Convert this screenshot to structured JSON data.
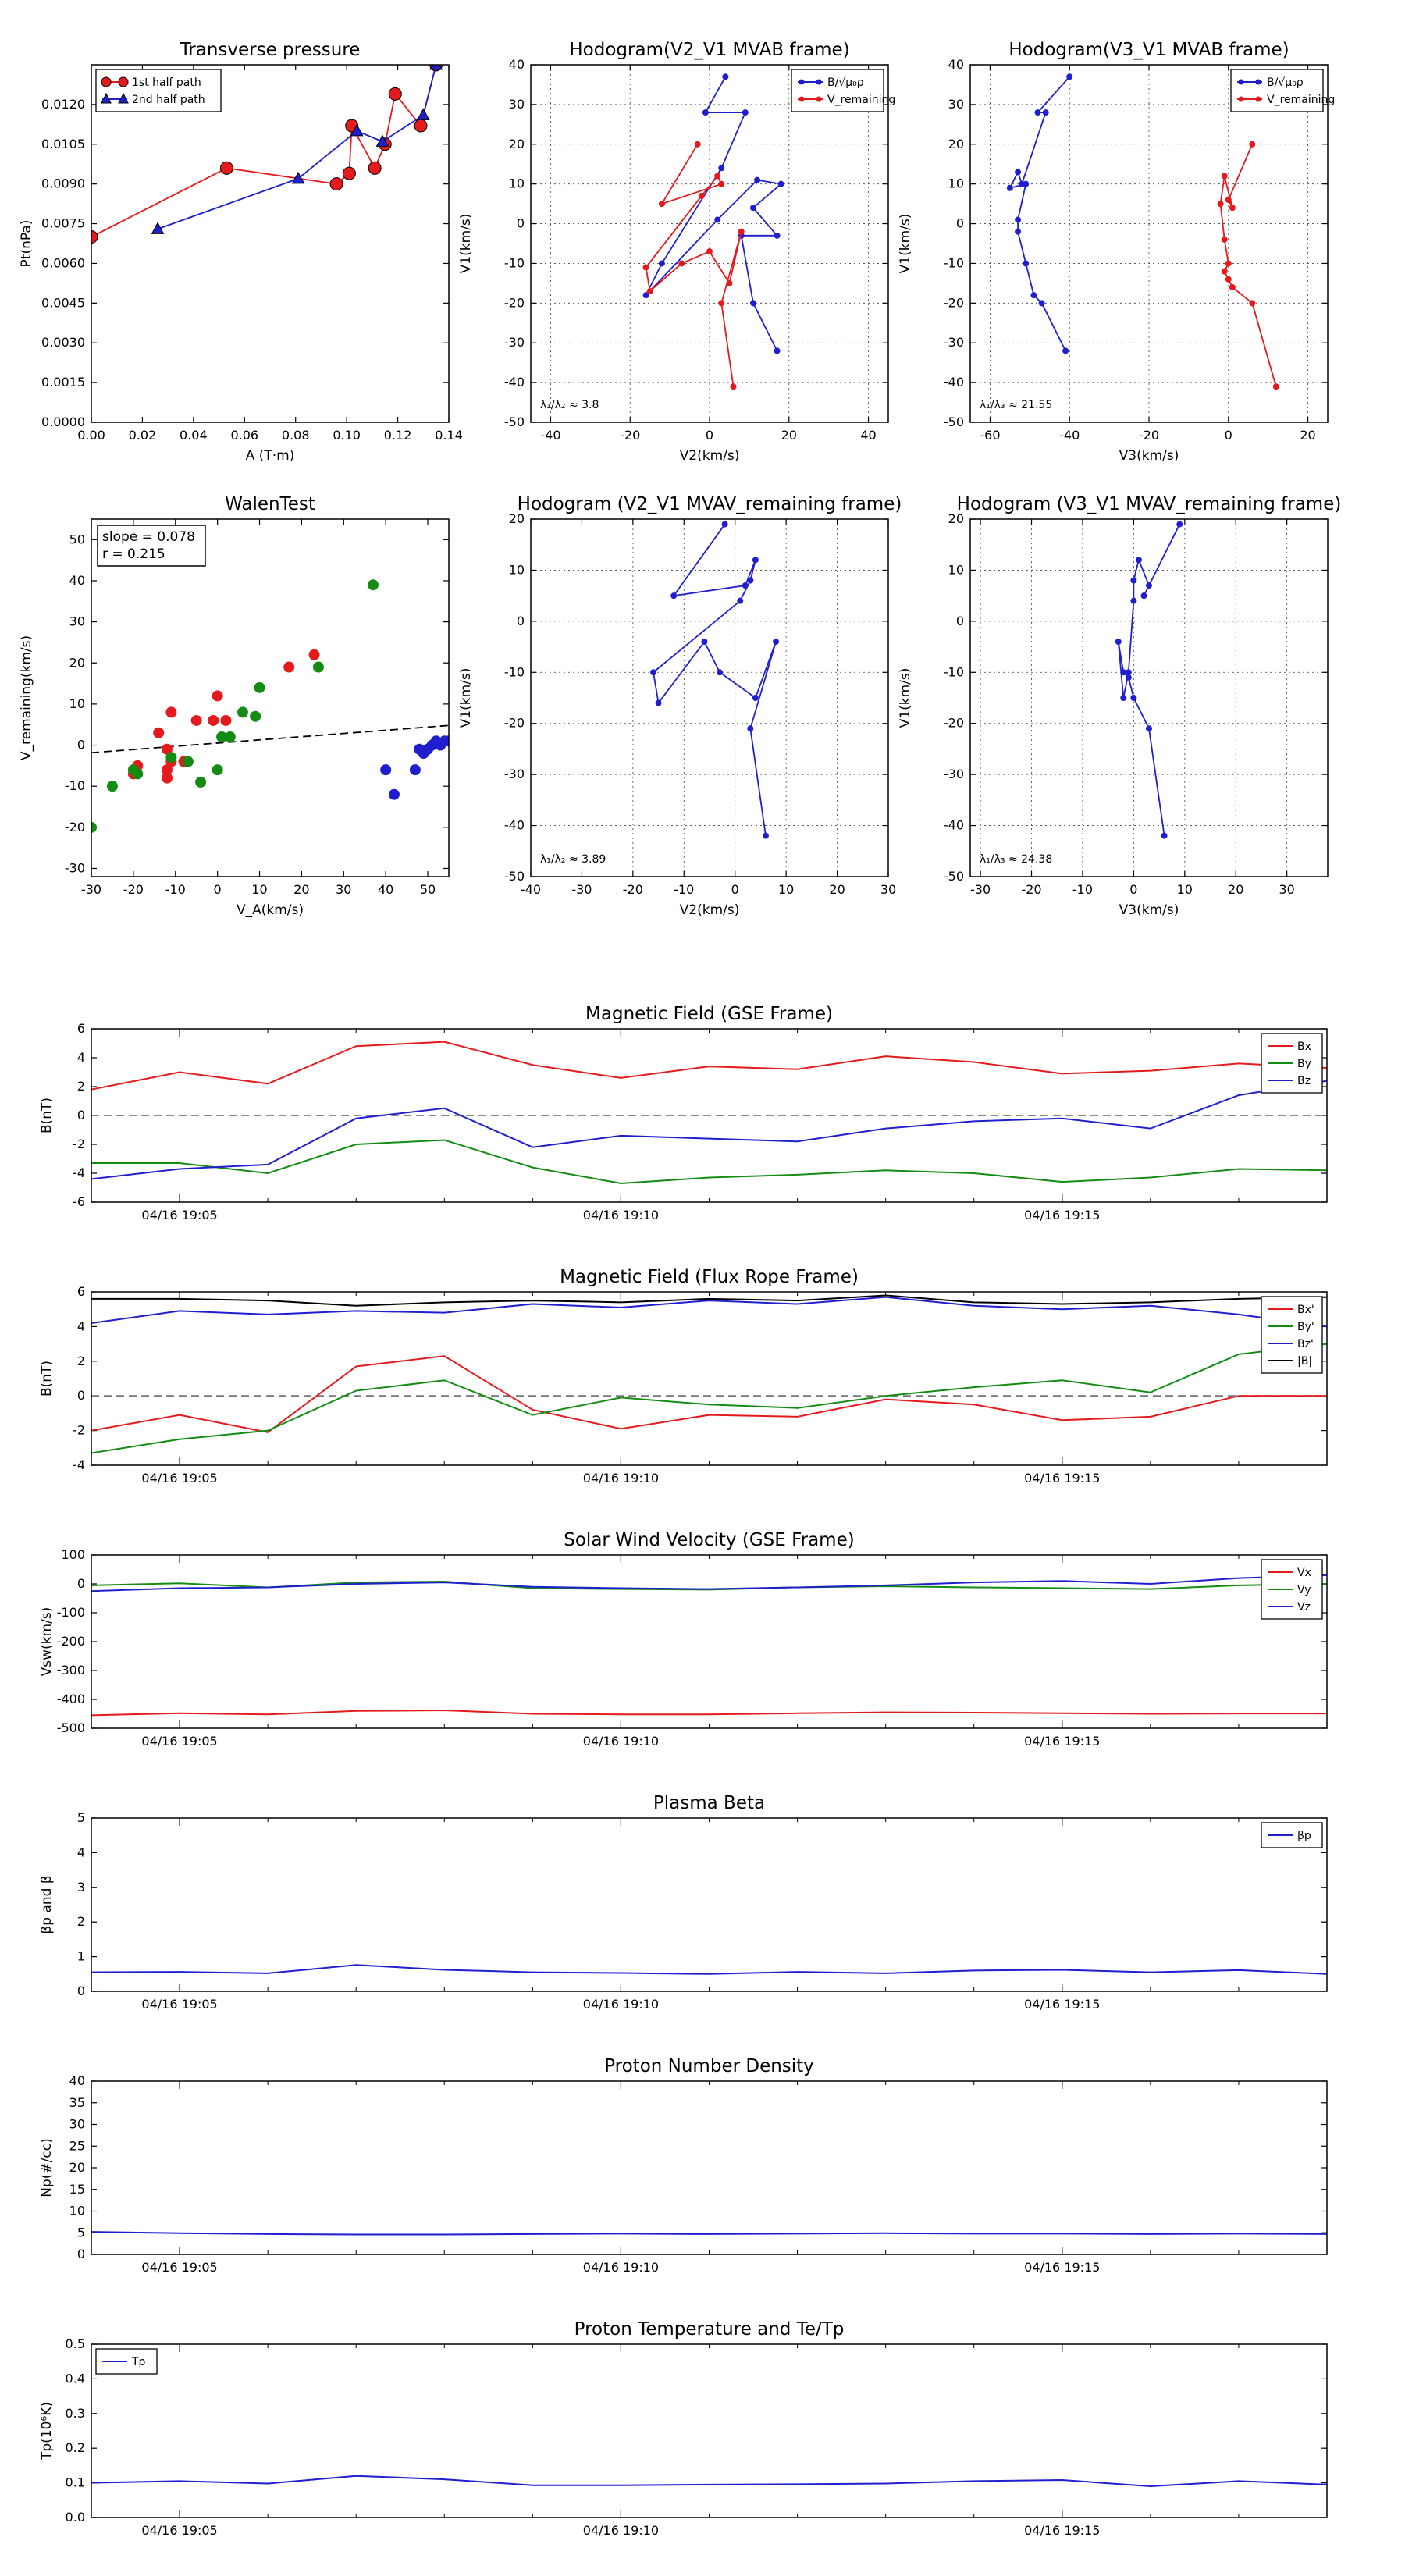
{
  "chart_data": [
    {
      "id": "pt",
      "type": "line",
      "title": "Transverse pressure",
      "xlabel": "A (T·m)",
      "ylabel": "Pt(nPa)",
      "xlim": [
        0,
        0.14
      ],
      "ylim": [
        0,
        0.0135
      ],
      "xticks": [
        0,
        0.02,
        0.04,
        0.06,
        0.08,
        0.1,
        0.12,
        0.14
      ],
      "xtick_labels": [
        "0.00",
        "0.02",
        "0.04",
        "0.06",
        "0.08",
        "0.10",
        "0.12",
        "0.14"
      ],
      "yticks": [
        0,
        0.0015,
        0.003,
        0.0045,
        0.006,
        0.0075,
        0.009,
        0.0105,
        0.012
      ],
      "ytick_labels": [
        "0.0000",
        "0.0015",
        "0.0030",
        "0.0045",
        "0.0060",
        "0.0075",
        "0.0090",
        "0.0105",
        "0.0120"
      ],
      "grid": false,
      "legend": "top-left",
      "series": [
        {
          "name": "1st half path",
          "color": "#e41a1c",
          "marker": "circle",
          "x": [
            0.0,
            0.053,
            0.096,
            0.101,
            0.102,
            0.111,
            0.115,
            0.119,
            0.129,
            0.135
          ],
          "y": [
            0.007,
            0.0096,
            0.009,
            0.0094,
            0.0112,
            0.0096,
            0.0105,
            0.0124,
            0.0112,
            0.0135
          ]
        },
        {
          "name": "2nd half path",
          "color": "#1f1fcf",
          "marker": "triangle",
          "x": [
            0.026,
            0.081,
            0.104,
            0.114,
            0.13,
            0.135
          ],
          "y": [
            0.0073,
            0.0092,
            0.011,
            0.0106,
            0.0116,
            0.0135
          ]
        }
      ]
    },
    {
      "id": "h1",
      "type": "line",
      "title": "Hodogram(V2_V1 MVAB frame)",
      "xlabel": "V2(km/s)",
      "ylabel": "V1(km/s)",
      "xlim": [
        -45,
        45
      ],
      "ylim": [
        -50,
        40
      ],
      "xticks": [
        -40,
        -20,
        0,
        20,
        40
      ],
      "yticks": [
        -50,
        -40,
        -30,
        -20,
        -10,
        0,
        10,
        20,
        30,
        40
      ],
      "grid": true,
      "legend": "top-right",
      "annotation": "λ₁/λ₂ ≈ 3.8",
      "series": [
        {
          "name": "B/√μ₀ρ",
          "color": "#1f1fcf",
          "x": [
            4,
            -1,
            9,
            3,
            -12,
            -16,
            2,
            12,
            18,
            11,
            17,
            8,
            11,
            17
          ],
          "y": [
            37,
            28,
            28,
            14,
            -10,
            -18,
            1,
            11,
            10,
            4,
            -3,
            -3,
            -20,
            -32
          ]
        },
        {
          "name": "V_remaining",
          "color": "#e41a1c",
          "x": [
            -3,
            -12,
            3,
            2,
            -2,
            -16,
            -15,
            -7,
            0,
            5,
            8,
            3,
            6
          ],
          "y": [
            20,
            5,
            10,
            12,
            7,
            -11,
            -17,
            -10,
            -7,
            -15,
            -2,
            -20,
            -41
          ]
        }
      ]
    },
    {
      "id": "h2",
      "type": "line",
      "title": "Hodogram(V3_V1 MVAB frame)",
      "xlabel": "V3(km/s)",
      "ylabel": "V1(km/s)",
      "xlim": [
        -65,
        25
      ],
      "ylim": [
        -50,
        40
      ],
      "xticks": [
        -60,
        -40,
        -20,
        0,
        20
      ],
      "yticks": [
        -50,
        -40,
        -30,
        -20,
        -10,
        0,
        10,
        20,
        30,
        40
      ],
      "grid": true,
      "legend": "top-right",
      "annotation": "λ₁/λ₃ ≈ 21.55",
      "series": [
        {
          "name": "B/√μ₀ρ",
          "color": "#1f1fcf",
          "x": [
            -40,
            -48,
            -46,
            -52,
            -53,
            -55,
            -51,
            -53,
            -53,
            -51,
            -49,
            -47,
            -41
          ],
          "y": [
            37,
            28,
            28,
            10,
            13,
            9,
            10,
            1,
            -2,
            -10,
            -18,
            -20,
            -32
          ]
        },
        {
          "name": "V_remaining",
          "color": "#e41a1c",
          "x": [
            6,
            0,
            1,
            -1,
            -2,
            -1,
            0,
            -1,
            0,
            1,
            6,
            12
          ],
          "y": [
            20,
            6,
            4,
            12,
            5,
            -4,
            -10,
            -12,
            -14,
            -16,
            -20,
            -41
          ]
        }
      ]
    },
    {
      "id": "walen",
      "type": "scatter",
      "title": "WalenTest",
      "xlabel": "V_A(km/s)",
      "ylabel": "V_remaining(km/s)",
      "xlim": [
        -30,
        55
      ],
      "ylim": [
        -32,
        55
      ],
      "xticks": [
        -30,
        -20,
        -10,
        0,
        10,
        20,
        30,
        40,
        50
      ],
      "yticks": [
        -30,
        -20,
        -10,
        0,
        10,
        20,
        30,
        40,
        50
      ],
      "grid": false,
      "annotation_lines": [
        "slope = 0.078",
        "r = 0.215"
      ],
      "fit_line": {
        "slope": 0.078,
        "intercept": 0.5
      },
      "series": [
        {
          "color": "#e41a1c",
          "x": [
            -11,
            -12,
            -14,
            -12,
            -12,
            -19,
            -20,
            -8,
            -5,
            -1,
            0,
            2,
            17,
            23,
            -11
          ],
          "y": [
            8,
            -1,
            3,
            -6,
            -8,
            -5,
            -7,
            -4,
            6,
            6,
            12,
            6,
            19,
            22,
            -4
          ]
        },
        {
          "color": "#148c14",
          "x": [
            -30,
            -25,
            -20,
            -19,
            -11,
            -7,
            -4,
            0,
            1,
            3,
            6,
            9,
            10,
            24,
            37
          ],
          "y": [
            -20,
            -10,
            -6,
            -7,
            -3,
            -4,
            -9,
            -6,
            2,
            2,
            8,
            7,
            14,
            19,
            39
          ]
        },
        {
          "color": "#1f1fcf",
          "x": [
            40,
            42,
            47,
            48,
            49,
            50,
            51,
            52,
            53,
            54,
            55,
            57
          ],
          "y": [
            -6,
            -12,
            -6,
            -1,
            -2,
            -1,
            0,
            1,
            0,
            1,
            1,
            0
          ]
        }
      ]
    },
    {
      "id": "h3",
      "type": "line",
      "title": "Hodogram (V2_V1 MVAV_remaining frame)",
      "xlabel": "V2(km/s)",
      "ylabel": "V1(km/s)",
      "xlim": [
        -40,
        30
      ],
      "ylim": [
        -50,
        20
      ],
      "xticks": [
        -40,
        -30,
        -20,
        -10,
        0,
        10,
        20,
        30
      ],
      "yticks": [
        -50,
        -40,
        -30,
        -20,
        -10,
        0,
        10,
        20
      ],
      "grid": true,
      "annotation": "λ₁/λ₂ ≈ 3.89",
      "series": [
        {
          "color": "#1f1fcf",
          "x": [
            -2,
            -12,
            2,
            4,
            3,
            1,
            -16,
            -15,
            -6,
            -3,
            4,
            8,
            3,
            6
          ],
          "y": [
            19,
            5,
            7,
            12,
            8,
            4,
            -10,
            -16,
            -4,
            -10,
            -15,
            -4,
            -21,
            -42
          ]
        }
      ]
    },
    {
      "id": "h4",
      "type": "line",
      "title": "Hodogram (V3_V1 MVAV_remaining frame)",
      "xlabel": "V3(km/s)",
      "ylabel": "V1(km/s)",
      "xlim": [
        -32,
        38
      ],
      "ylim": [
        -50,
        20
      ],
      "xticks": [
        -30,
        -20,
        -10,
        0,
        10,
        20,
        30
      ],
      "yticks": [
        -50,
        -40,
        -30,
        -20,
        -10,
        0,
        10,
        20
      ],
      "grid": true,
      "annotation": "λ₁/λ₃ ≈ 24.38",
      "series": [
        {
          "color": "#1f1fcf",
          "x": [
            9,
            2,
            3,
            1,
            0,
            0,
            -1,
            -2,
            -3,
            -2,
            -1,
            0,
            3,
            6
          ],
          "y": [
            19,
            5,
            7,
            12,
            8,
            4,
            -10,
            -15,
            -4,
            -10,
            -11,
            -15,
            -21,
            -42
          ]
        }
      ]
    },
    {
      "id": "ts1",
      "type": "line",
      "title": "Magnetic Field (GSE Frame)",
      "ylabel": "B(nT)",
      "ylim": [
        -6,
        6
      ],
      "yticks": [
        -6,
        -4,
        -2,
        0,
        2,
        4,
        6
      ],
      "x_dates": [
        "04/16 19:05",
        "04/16 19:10",
        "04/16 19:15"
      ],
      "x": [
        0,
        1,
        2,
        3,
        4,
        5,
        6,
        7,
        8,
        9,
        10,
        11,
        12,
        13,
        14
      ],
      "xlim": [
        0,
        14
      ],
      "date_ticks": [
        1,
        6,
        11
      ],
      "zero_line": true,
      "legend": "top-right",
      "series": [
        {
          "name": "Bx",
          "color": "#e41a1c",
          "values": [
            1.8,
            3.0,
            2.2,
            4.8,
            5.1,
            3.5,
            2.6,
            3.4,
            3.2,
            4.1,
            3.7,
            2.9,
            3.1,
            3.6,
            3.3
          ]
        },
        {
          "name": "By",
          "color": "#148c14",
          "values": [
            -3.3,
            -3.3,
            -4.0,
            -2.0,
            -1.7,
            -3.6,
            -4.7,
            -4.3,
            -4.1,
            -3.8,
            -4.0,
            -4.6,
            -4.3,
            -3.7,
            -3.8
          ]
        },
        {
          "name": "Bz",
          "color": "#1f1fcf",
          "values": [
            -4.4,
            -3.7,
            -3.4,
            -0.2,
            0.5,
            -2.2,
            -1.4,
            -1.6,
            -1.8,
            -0.9,
            -0.4,
            -0.2,
            -0.9,
            1.4,
            2.4
          ]
        }
      ]
    },
    {
      "id": "ts2",
      "type": "line",
      "title": "Magnetic Field (Flux Rope Frame)",
      "ylabel": "B(nT)",
      "ylim": [
        -4,
        6
      ],
      "yticks": [
        -4,
        -2,
        0,
        2,
        4,
        6
      ],
      "x_dates": [
        "04/16 19:05",
        "04/16 19:10",
        "04/16 19:15"
      ],
      "x": [
        0,
        1,
        2,
        3,
        4,
        5,
        6,
        7,
        8,
        9,
        10,
        11,
        12,
        13,
        14
      ],
      "xlim": [
        0,
        14
      ],
      "date_ticks": [
        1,
        6,
        11
      ],
      "zero_line": true,
      "legend": "top-right",
      "series": [
        {
          "name": "Bx'",
          "color": "#e41a1c",
          "values": [
            -2.0,
            -1.1,
            -2.1,
            1.7,
            2.3,
            -0.8,
            -1.9,
            -1.1,
            -1.2,
            -0.2,
            -0.5,
            -1.4,
            -1.2,
            0.0,
            0.0
          ]
        },
        {
          "name": "By'",
          "color": "#148c14",
          "values": [
            -3.3,
            -2.5,
            -2.0,
            0.3,
            0.9,
            -1.1,
            -0.1,
            -0.5,
            -0.7,
            0.0,
            0.5,
            0.9,
            0.2,
            2.4,
            3.0
          ]
        },
        {
          "name": "Bz'",
          "color": "#1f1fcf",
          "values": [
            4.2,
            4.9,
            4.7,
            4.9,
            4.8,
            5.3,
            5.1,
            5.5,
            5.3,
            5.7,
            5.2,
            5.0,
            5.2,
            4.7,
            4.0
          ]
        },
        {
          "name": "|B|",
          "color": "#000000",
          "values": [
            5.6,
            5.6,
            5.5,
            5.2,
            5.4,
            5.5,
            5.4,
            5.6,
            5.5,
            5.8,
            5.4,
            5.3,
            5.4,
            5.6,
            5.7
          ]
        }
      ]
    },
    {
      "id": "ts3",
      "type": "line",
      "title": "Solar Wind Velocity (GSE Frame)",
      "ylabel": "Vsw(km/s)",
      "ylim": [
        -500,
        100
      ],
      "yticks": [
        -500,
        -400,
        -300,
        -200,
        -100,
        0,
        100
      ],
      "x_dates": [
        "04/16 19:05",
        "04/16 19:10",
        "04/16 19:15"
      ],
      "x": [
        0,
        1,
        2,
        3,
        4,
        5,
        6,
        7,
        8,
        9,
        10,
        11,
        12,
        13,
        14
      ],
      "xlim": [
        0,
        14
      ],
      "date_ticks": [
        1,
        6,
        11
      ],
      "legend": "top-right",
      "series": [
        {
          "name": "Vx",
          "color": "#e41a1c",
          "values": [
            -455,
            -448,
            -452,
            -440,
            -438,
            -450,
            -452,
            -452,
            -448,
            -445,
            -446,
            -448,
            -450,
            -449,
            -449
          ]
        },
        {
          "name": "Vy",
          "color": "#148c14",
          "values": [
            -5,
            2,
            -12,
            5,
            8,
            -15,
            -18,
            -20,
            -12,
            -8,
            -12,
            -15,
            -18,
            -5,
            0
          ]
        },
        {
          "name": "Vz",
          "color": "#1f1fcf",
          "values": [
            -25,
            -15,
            -12,
            0,
            5,
            -10,
            -15,
            -18,
            -12,
            -5,
            5,
            10,
            0,
            20,
            30
          ]
        }
      ]
    },
    {
      "id": "ts4",
      "type": "line",
      "title": "Plasma Beta",
      "ylabel": "βp and β",
      "ylim": [
        0,
        5
      ],
      "yticks": [
        0,
        1,
        2,
        3,
        4,
        5
      ],
      "x_dates": [
        "04/16 19:05",
        "04/16 19:10",
        "04/16 19:15"
      ],
      "x": [
        0,
        1,
        2,
        3,
        4,
        5,
        6,
        7,
        8,
        9,
        10,
        11,
        12,
        13,
        14
      ],
      "xlim": [
        0,
        14
      ],
      "date_ticks": [
        1,
        6,
        11
      ],
      "legend": "top-right",
      "series": [
        {
          "name": "βp",
          "color": "#1f1fcf",
          "values": [
            0.55,
            0.56,
            0.52,
            0.76,
            0.62,
            0.55,
            0.53,
            0.5,
            0.56,
            0.52,
            0.6,
            0.62,
            0.55,
            0.61,
            0.5
          ]
        }
      ]
    },
    {
      "id": "ts5",
      "type": "line",
      "title": "Proton Number Density",
      "ylabel": "Np(#/cc)",
      "ylim": [
        0,
        40
      ],
      "yticks": [
        0,
        5,
        10,
        15,
        20,
        25,
        30,
        35,
        40
      ],
      "x_dates": [
        "04/16 19:05",
        "04/16 19:10",
        "04/16 19:15"
      ],
      "x": [
        0,
        1,
        2,
        3,
        4,
        5,
        6,
        7,
        8,
        9,
        10,
        11,
        12,
        13,
        14
      ],
      "xlim": [
        0,
        14
      ],
      "date_ticks": [
        1,
        6,
        11
      ],
      "series": [
        {
          "color": "#1f1fcf",
          "values": [
            5.2,
            4.9,
            4.7,
            4.6,
            4.6,
            4.7,
            4.8,
            4.7,
            4.8,
            4.9,
            4.8,
            4.8,
            4.7,
            4.8,
            4.7
          ]
        }
      ]
    },
    {
      "id": "ts6",
      "type": "line",
      "title": "Proton Temperature and Te/Tp",
      "ylabel": "Tp(10⁶K)",
      "ylim": [
        0,
        0.5
      ],
      "yticks": [
        0,
        0.1,
        0.2,
        0.3,
        0.4,
        0.5
      ],
      "ytick_labels": [
        "0.0",
        "0.1",
        "0.2",
        "0.3",
        "0.4",
        "0.5"
      ],
      "x_dates": [
        "04/16 19:05",
        "04/16 19:10",
        "04/16 19:15"
      ],
      "x": [
        0,
        1,
        2,
        3,
        4,
        5,
        6,
        7,
        8,
        9,
        10,
        11,
        12,
        13,
        14
      ],
      "xlim": [
        0,
        14
      ],
      "date_ticks": [
        1,
        6,
        11
      ],
      "legend": "top-left",
      "series": [
        {
          "name": "Tp",
          "color": "#1f1fcf",
          "values": [
            0.1,
            0.105,
            0.098,
            0.12,
            0.11,
            0.093,
            0.093,
            0.095,
            0.096,
            0.098,
            0.105,
            0.108,
            0.09,
            0.105,
            0.095
          ]
        }
      ]
    }
  ]
}
